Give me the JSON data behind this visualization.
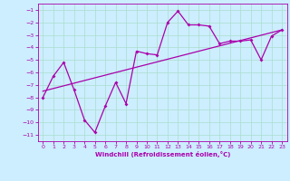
{
  "xlabel": "Windchill (Refroidissement éolien,°C)",
  "bg_color": "#cceeff",
  "grid_color": "#aaddcc",
  "line_color": "#aa00aa",
  "xlim": [
    -0.5,
    23.5
  ],
  "ylim": [
    -11.5,
    -0.5
  ],
  "xticks": [
    0,
    1,
    2,
    3,
    4,
    5,
    6,
    7,
    8,
    9,
    10,
    11,
    12,
    13,
    14,
    15,
    16,
    17,
    18,
    19,
    20,
    21,
    22,
    23
  ],
  "yticks": [
    -1,
    -2,
    -3,
    -4,
    -5,
    -6,
    -7,
    -8,
    -9,
    -10,
    -11
  ],
  "series1_x": [
    0,
    1,
    2,
    3,
    4,
    5,
    6,
    7,
    8,
    9,
    10,
    11,
    12,
    13,
    14,
    15,
    16,
    17,
    18,
    19,
    20,
    21,
    22,
    23
  ],
  "series1_y": [
    -8.0,
    -6.3,
    -5.2,
    -7.4,
    -9.8,
    -10.8,
    -8.7,
    -6.8,
    -8.5,
    -4.3,
    -4.5,
    -4.6,
    -2.0,
    -1.1,
    -2.2,
    -2.2,
    -2.3,
    -3.7,
    -3.5,
    -3.5,
    -3.4,
    -5.0,
    -3.1,
    -2.6
  ],
  "trend_x": [
    0,
    23
  ],
  "trend_y": [
    -7.5,
    -2.6
  ]
}
